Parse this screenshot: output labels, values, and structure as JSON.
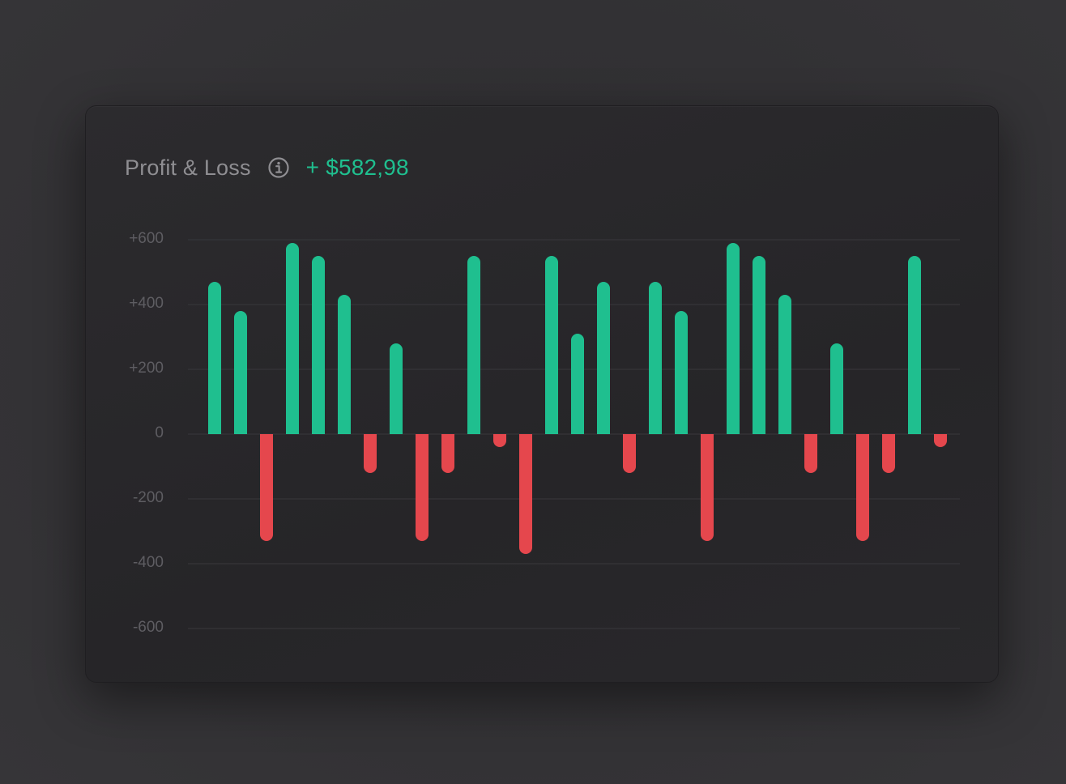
{
  "card": {
    "title": "Profit & Loss",
    "info_icon": "info-circle-icon",
    "total": "+ $582,98"
  },
  "colors": {
    "profit": "#1fbf8f",
    "loss": "#e5474d",
    "grid": "#333236",
    "tick_label": "#5e5d62",
    "title": "#8f8e92"
  },
  "chart_data": {
    "type": "bar",
    "title": "Profit & Loss",
    "xlabel": "",
    "ylabel": "",
    "ylim": [
      -600,
      600
    ],
    "yticks": [
      "+600",
      "+400",
      "+200",
      "0",
      "-200",
      "-400",
      "-600"
    ],
    "ytick_values": [
      600,
      400,
      200,
      0,
      -200,
      -400,
      -600
    ],
    "grid": true,
    "legend": "none",
    "values": [
      470,
      380,
      -330,
      590,
      550,
      430,
      -120,
      280,
      -330,
      -120,
      550,
      -40,
      -370,
      550,
      310,
      470,
      -120,
      470,
      380,
      -330,
      590,
      550,
      430,
      -120,
      280,
      -330,
      -120,
      550,
      -40
    ]
  }
}
